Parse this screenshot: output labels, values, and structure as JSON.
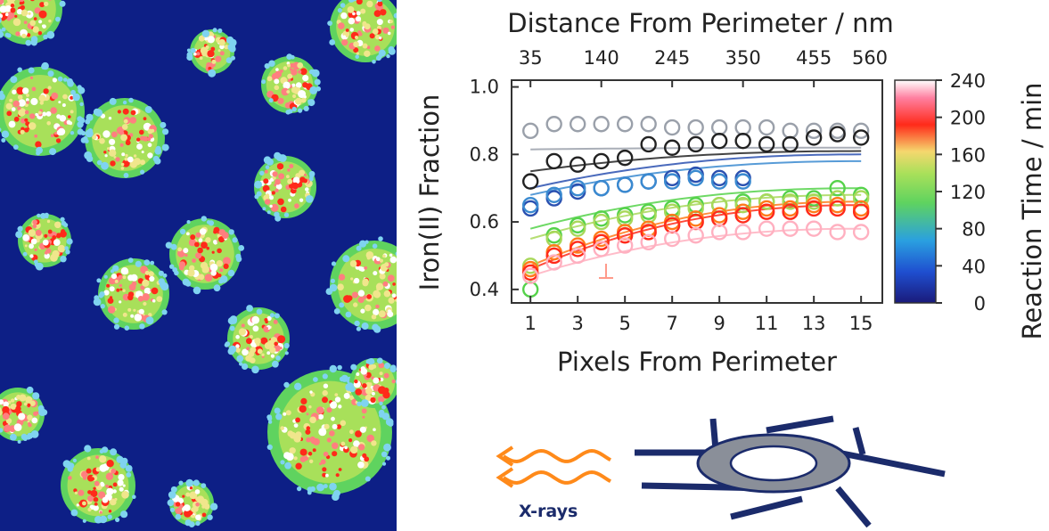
{
  "map": {
    "background_color": "#0d1f86",
    "palette": [
      "#7fd3f0",
      "#5fd35f",
      "#a8e05a",
      "#f0e68c",
      "#ff2a1a",
      "#ff7f7f",
      "#ffffff"
    ]
  },
  "chart_data": {
    "type": "scatter",
    "title": "",
    "xlabel": "Pixels From Perimeter",
    "ylabel": "Iron(II) Fraction",
    "top_xlabel": "Distance From Perimeter / nm",
    "colorbar_label": "Reaction Time / min",
    "xlim": [
      0.2,
      15.9
    ],
    "ylim": [
      0.36,
      1.02
    ],
    "x_ticks": [
      "1",
      "3",
      "5",
      "7",
      "9",
      "11",
      "13",
      "15"
    ],
    "y_ticks": [
      "0.4",
      "0.6",
      "0.8",
      "1.0"
    ],
    "top_ticks": [
      {
        "x": 1,
        "label": "35"
      },
      {
        "x": 4,
        "label": "140"
      },
      {
        "x": 7,
        "label": "245"
      },
      {
        "x": 10,
        "label": "350"
      },
      {
        "x": 13,
        "label": "455"
      },
      {
        "x": 16,
        "label": "560"
      }
    ],
    "colorbar": {
      "range": [
        0,
        240
      ],
      "ticks": [
        "0",
        "40",
        "80",
        "120",
        "160",
        "200",
        "240"
      ],
      "colors": [
        "#1a1a7a",
        "#1f4fd0",
        "#2aa0e0",
        "#5fd35f",
        "#a8e05a",
        "#f5d76e",
        "#ff2a1a",
        "#ff7fa0",
        "#ffffff"
      ]
    },
    "grid": false,
    "series": [
      {
        "color": "#9aa0aa",
        "x": [
          1,
          2,
          3,
          4,
          5,
          6,
          7,
          8,
          9,
          10,
          11,
          12,
          13,
          14,
          15
        ],
        "y": [
          0.87,
          0.89,
          0.89,
          0.89,
          0.89,
          0.89,
          0.88,
          0.88,
          0.88,
          0.88,
          0.88,
          0.87,
          0.87,
          0.87,
          0.87
        ],
        "fit": [
          0.815,
          0.82
        ]
      },
      {
        "color": "#222222",
        "x": [
          1,
          2,
          3,
          4,
          5,
          6,
          7,
          8,
          9,
          10,
          11,
          12,
          13,
          14,
          15
        ],
        "y": [
          0.72,
          0.78,
          0.77,
          0.78,
          0.79,
          0.83,
          0.82,
          0.83,
          0.84,
          0.84,
          0.83,
          0.83,
          0.85,
          0.86,
          0.85
        ],
        "fit": [
          0.75,
          0.81
        ]
      },
      {
        "color": "#2a50b0",
        "x": [
          1,
          2,
          3,
          4,
          5,
          6,
          7,
          8,
          9,
          10
        ],
        "y": [
          0.64,
          0.67,
          0.69,
          0.7,
          0.71,
          0.72,
          0.73,
          0.74,
          0.73,
          0.73
        ],
        "fit": [
          0.7,
          0.8
        ]
      },
      {
        "color": "#3a8ad0",
        "x": [
          1,
          2,
          3,
          4,
          5,
          6,
          7,
          8,
          9,
          10
        ],
        "y": [
          0.65,
          0.68,
          0.7,
          0.7,
          0.71,
          0.72,
          0.72,
          0.73,
          0.72,
          0.72
        ],
        "fit": [
          0.68,
          0.78
        ]
      },
      {
        "color": "#55d24a",
        "x": [
          1,
          2,
          3,
          4,
          5,
          6,
          7,
          8,
          9,
          10,
          11,
          12,
          13,
          14,
          15
        ],
        "y": [
          0.4,
          0.56,
          0.59,
          0.61,
          0.62,
          0.63,
          0.64,
          0.65,
          0.65,
          0.66,
          0.66,
          0.67,
          0.67,
          0.7,
          0.68
        ],
        "fit": [
          0.58,
          0.7
        ]
      },
      {
        "color": "#a8d85a",
        "x": [
          1,
          2,
          3,
          4,
          5,
          6,
          7,
          8,
          9,
          10,
          11,
          12,
          13,
          14,
          15
        ],
        "y": [
          0.47,
          0.55,
          0.58,
          0.6,
          0.61,
          0.62,
          0.63,
          0.64,
          0.65,
          0.65,
          0.66,
          0.66,
          0.66,
          0.67,
          0.67
        ],
        "fit": [
          0.55,
          0.68
        ]
      },
      {
        "color": "#ff7a1a",
        "x": [
          1,
          2,
          3,
          4,
          5,
          6,
          7,
          8,
          9,
          10,
          11,
          12,
          13,
          14,
          15
        ],
        "y": [
          0.46,
          0.51,
          0.53,
          0.55,
          0.57,
          0.58,
          0.6,
          0.61,
          0.62,
          0.63,
          0.64,
          0.64,
          0.65,
          0.65,
          0.64
        ],
        "fit": [
          0.47,
          0.66
        ]
      },
      {
        "color": "#ff2a1a",
        "x": [
          1,
          2,
          3,
          4,
          5,
          6,
          7,
          8,
          9,
          10,
          11,
          12,
          13,
          14,
          15
        ],
        "y": [
          0.45,
          0.5,
          0.52,
          0.54,
          0.56,
          0.57,
          0.59,
          0.6,
          0.61,
          0.62,
          0.63,
          0.63,
          0.64,
          0.64,
          0.63
        ],
        "fit": [
          0.46,
          0.65
        ]
      },
      {
        "color": "#ffb0c0",
        "x": [
          1,
          2,
          3,
          4,
          5,
          6,
          7,
          8,
          9,
          10,
          11,
          12,
          13,
          14,
          15
        ],
        "y": [
          0.44,
          0.48,
          0.5,
          0.52,
          0.53,
          0.54,
          0.55,
          0.56,
          0.57,
          0.57,
          0.58,
          0.58,
          0.58,
          0.57,
          0.57
        ],
        "fit": [
          0.44,
          0.58
        ]
      }
    ]
  },
  "diagram": {
    "label": "X-rays",
    "wave_color": "#ff8a1a",
    "frame_color": "#1b2b6b",
    "ring_color": "#8a8f99"
  }
}
